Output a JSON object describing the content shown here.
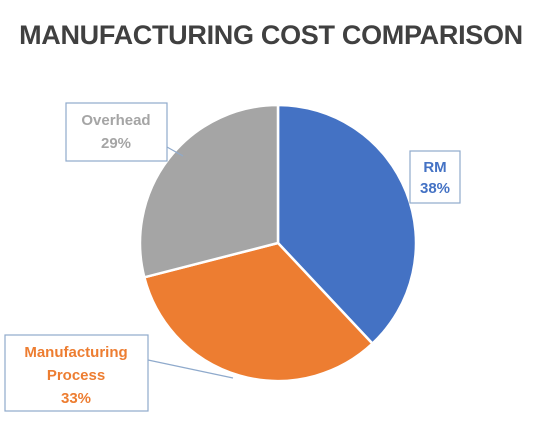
{
  "chart_data": {
    "type": "pie",
    "title": "MANUFACTURING COST COMPARISON",
    "slices": [
      {
        "label": "RM",
        "value": 38,
        "display": "38%",
        "color": "#4472c4"
      },
      {
        "label": "Manufacturing Process",
        "value": 33,
        "display": "33%",
        "color": "#ed7d31"
      },
      {
        "label": "Overhead",
        "value": 29,
        "display": "29%",
        "color": "#a5a5a5"
      }
    ],
    "label_colors": [
      "#4472c4",
      "#ed7d31",
      "#a5a5a5"
    ]
  }
}
